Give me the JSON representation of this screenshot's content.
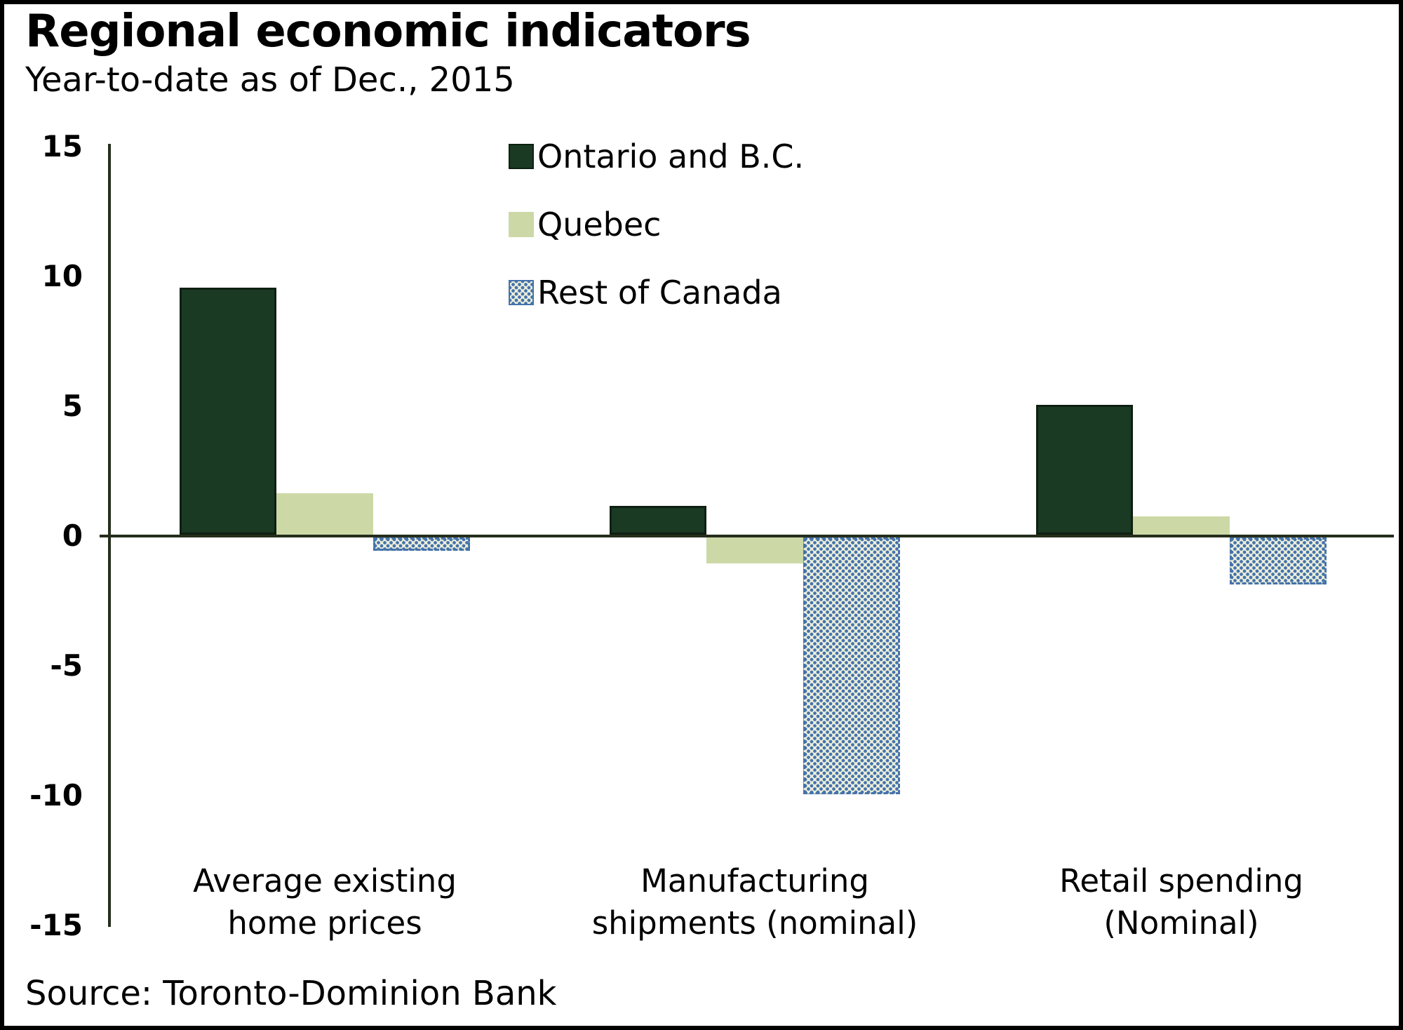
{
  "title": "Regional economic indicators",
  "subtitle": "Year-to-date as of Dec., 2015",
  "source": "Source: Toronto-Dominion Bank",
  "colors": {
    "ontario_bc": "#1a3a23",
    "quebec": "#ccd9a7",
    "rest_of_canada_dot": "#4573ab",
    "rest_of_canada_bg": "#eceedb",
    "axis": "#252d1c",
    "text": "#000000",
    "background": "#ffffff"
  },
  "chart_data": {
    "type": "bar",
    "categories": [
      [
        "Average existing",
        "home prices"
      ],
      [
        "Manufacturing",
        "shipments (nominal)"
      ],
      [
        "Retail spending",
        "(Nominal)"
      ]
    ],
    "category_keys": [
      "home-prices",
      "manufacturing-shipments",
      "retail-spending"
    ],
    "series": [
      {
        "name": "Ontario and B.C.",
        "key": "ontario-bc",
        "values": [
          9.5,
          1.1,
          5.0
        ]
      },
      {
        "name": "Quebec",
        "key": "quebec",
        "values": [
          1.6,
          -1.0,
          0.7
        ]
      },
      {
        "name": "Rest of Canada",
        "key": "rest-of-canada",
        "values": [
          -0.5,
          -9.9,
          -1.8
        ]
      }
    ],
    "ylim": [
      -15,
      15
    ],
    "yticks": [
      15,
      10,
      5,
      0,
      -5,
      -10,
      -15
    ],
    "grid": false,
    "legend_position": "top-center"
  }
}
